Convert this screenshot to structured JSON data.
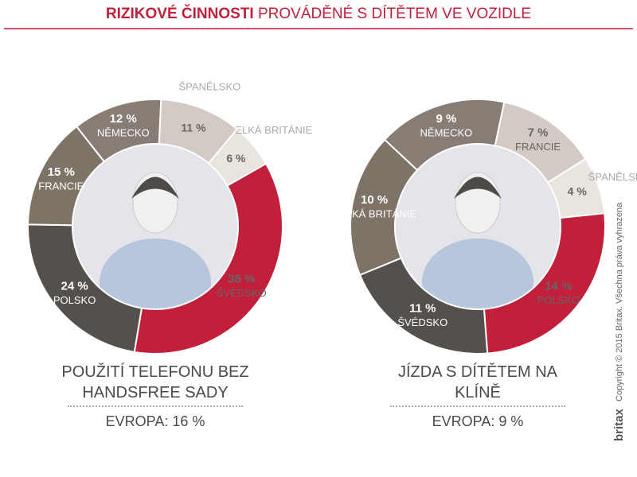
{
  "header": {
    "bold": "RIZIKOVÉ ČINNOSTI",
    "regular": "PROVÁDĚNÉ S DÍTĚTEM VE VOZIDLE"
  },
  "footer": {
    "logo": "britax",
    "copyright": "Copyright © 2015 Britax. Všechna práva vyhrazena"
  },
  "chart_data": [
    {
      "type": "donut",
      "title": "POUŽITÍ TELEFONU BEZ HANDSFREE SADY",
      "subtitle": "EVROPA: 16 %",
      "categories": [
        "VELKÁ BRITÁNIE",
        "ŠVÉDSKO",
        "POLSKO",
        "FRANCIE",
        "NĚMECKO",
        "ŠPANĚLSKO"
      ],
      "values": [
        6,
        38,
        24,
        15,
        12,
        11
      ],
      "value_labels": [
        "6 %",
        "38 %",
        "24 %",
        "15 %",
        "12 %",
        "11 %"
      ],
      "colors": [
        "#e9e4de",
        "#c21f3a",
        "#55504b",
        "#7d7467",
        "#877d75",
        "#d3cac3"
      ]
    },
    {
      "type": "donut",
      "title": "JÍZDA S DÍTĚTEM NA KLÍNĚ",
      "subtitle": "EVROPA: 9 %",
      "categories": [
        "FRANCIE",
        "ŠPANĚLSKO",
        "POLSKO",
        "ŠVÉDSKO",
        "VELKÁ BRITÁNIE",
        "NĚMECKO"
      ],
      "values": [
        7,
        4,
        14,
        11,
        10,
        9
      ],
      "value_labels": [
        "7 %",
        "4 %",
        "14 %",
        "11 %",
        "10 %",
        "9 %"
      ],
      "colors": [
        "#d3cac3",
        "#e9e4de",
        "#c21f3a",
        "#55504b",
        "#7d7467",
        "#877d75"
      ]
    }
  ]
}
